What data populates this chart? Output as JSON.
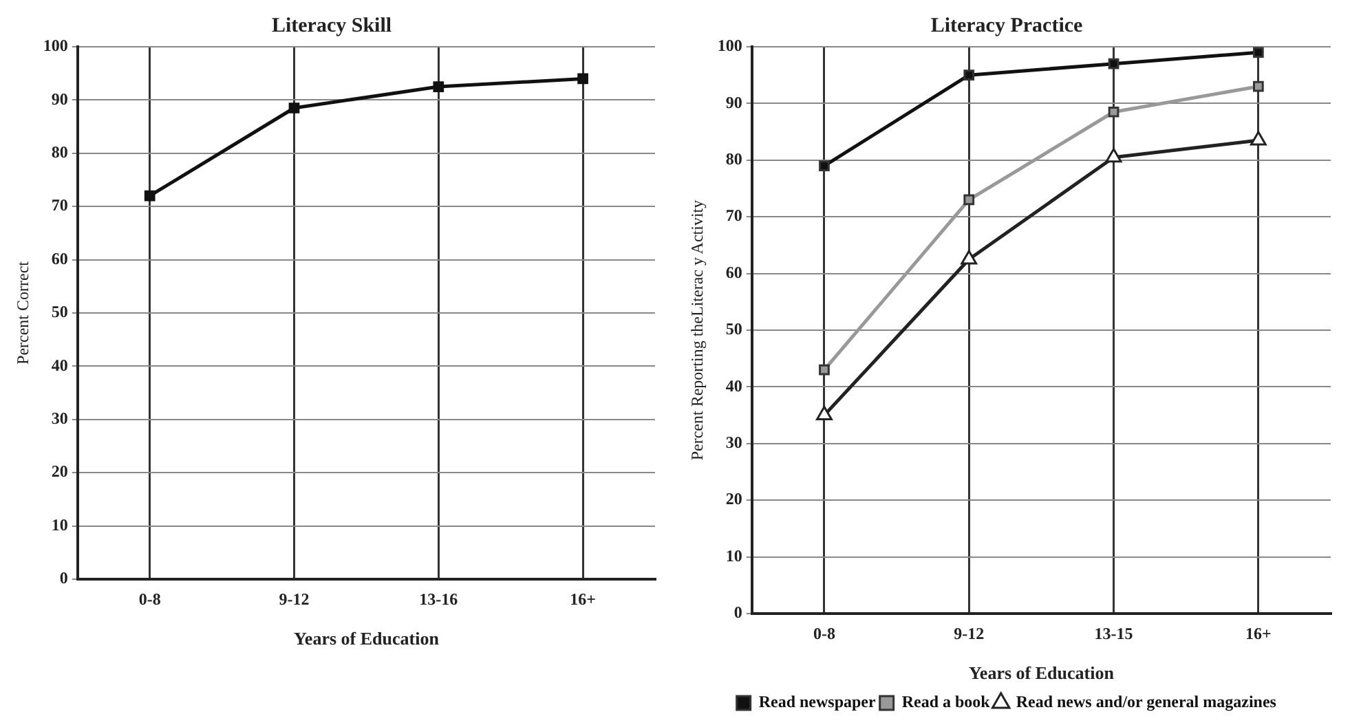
{
  "chart_data": [
    {
      "type": "line",
      "title": "Literacy Skill",
      "xlabel": "Years of Education",
      "ylabel": "Percent Correct",
      "categories": [
        "0-8",
        "9-12",
        "13-16",
        "16+"
      ],
      "values": [
        72,
        88.5,
        92.5,
        94
      ],
      "color": "#111111",
      "marker": "square",
      "ylim": [
        0,
        100
      ],
      "yticks": [
        0,
        10,
        20,
        30,
        40,
        50,
        60,
        70,
        80,
        90,
        100
      ],
      "grid": true
    },
    {
      "type": "line",
      "title": "Literacy Practice",
      "xlabel": "Years of Education",
      "ylabel": "Percent Reporting theLiterac y Activity",
      "categories": [
        "0-8",
        "9-12",
        "13-15",
        "16+"
      ],
      "series": [
        {
          "name": "Read newspaper",
          "color": "#111111",
          "marker": "square",
          "values": [
            79,
            95,
            97,
            99
          ]
        },
        {
          "name": "Read a book",
          "color": "#999999",
          "marker": "square",
          "values": [
            43,
            73,
            88.5,
            93
          ]
        },
        {
          "name": "Read news and/or general magazines",
          "color": "#222222",
          "marker": "triangle",
          "values": [
            35,
            62.5,
            80.5,
            83.5
          ]
        }
      ],
      "ylim": [
        0,
        100
      ],
      "yticks": [
        0,
        10,
        20,
        30,
        40,
        50,
        60,
        70,
        80,
        90,
        100
      ],
      "grid": true,
      "legend": "bottom"
    }
  ]
}
